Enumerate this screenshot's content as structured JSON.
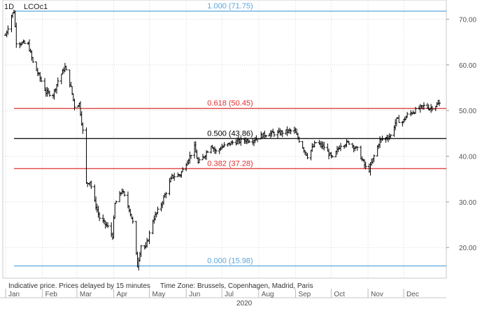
{
  "header": {
    "interval": "1D",
    "symbol": "LCOc1"
  },
  "footer": {
    "note": "Indicative price. Prices delayed by 15 minutes",
    "timezone": "Time Zone: Brussels, Copenhagen, Madrid, Paris"
  },
  "colors": {
    "fib_blue": "#5aa6dc",
    "fib_red": "#e03030",
    "fib_black": "#000000",
    "bars": "#000000",
    "grid": "#d8d8d8",
    "axis_text": "#555555"
  },
  "chart_data": {
    "type": "ohlc",
    "title": "LCOc1",
    "interval": "1D",
    "year_label": "2020",
    "x_ticks": [
      "Jan",
      "Feb",
      "Mar",
      "Apr",
      "May",
      "Jun",
      "Jul",
      "Aug",
      "Sep",
      "Oct",
      "Nov",
      "Dec"
    ],
    "y_ticks": [
      20,
      30,
      40,
      50,
      60,
      70
    ],
    "y_tick_labels": [
      "20.00",
      "30.00",
      "40.00",
      "50.00",
      "60.00",
      "70.00"
    ],
    "ylim": [
      13.3,
      74.2
    ],
    "grid": true,
    "fibonacci": [
      {
        "level": "1.000",
        "price": 71.75,
        "label": "1.000 (71.75)",
        "color": "#5aa6dc"
      },
      {
        "level": "0.618",
        "price": 50.45,
        "label": "0.618 (50.45)",
        "color": "#e03030"
      },
      {
        "level": "0.500",
        "price": 43.86,
        "label": "0.500 (43.86)",
        "color": "#000000"
      },
      {
        "level": "0.382",
        "price": 37.28,
        "label": "0.382 (37.28)",
        "color": "#e03030"
      },
      {
        "level": "0.000",
        "price": 15.98,
        "label": "0.000 (15.98)",
        "color": "#5aa6dc"
      }
    ],
    "price_path": [
      [
        "2020-01-01",
        66.5
      ],
      [
        "2020-01-06",
        70.8
      ],
      [
        "2020-01-08",
        71.7
      ],
      [
        "2020-01-10",
        65.0
      ],
      [
        "2020-01-20",
        64.5
      ],
      [
        "2020-01-24",
        60.5
      ],
      [
        "2020-01-31",
        56.5
      ],
      [
        "2020-02-04",
        54.0
      ],
      [
        "2020-02-10",
        53.5
      ],
      [
        "2020-02-14",
        56.5
      ],
      [
        "2020-02-19",
        59.0
      ],
      [
        "2020-02-20",
        59.5
      ],
      [
        "2020-02-25",
        55.0
      ],
      [
        "2020-02-28",
        51.0
      ],
      [
        "2020-03-03",
        51.5
      ],
      [
        "2020-03-06",
        45.5
      ],
      [
        "2020-03-09",
        34.0
      ],
      [
        "2020-03-12",
        34.5
      ],
      [
        "2020-03-16",
        30.0
      ],
      [
        "2020-03-20",
        26.5
      ],
      [
        "2020-03-27",
        24.5
      ],
      [
        "2020-03-31",
        22.5
      ],
      [
        "2020-04-02",
        29.5
      ],
      [
        "2020-04-08",
        32.5
      ],
      [
        "2020-04-14",
        28.5
      ],
      [
        "2020-04-17",
        25.5
      ],
      [
        "2020-04-21",
        16.0
      ],
      [
        "2020-04-24",
        20.5
      ],
      [
        "2020-04-28",
        20.0
      ],
      [
        "2020-05-04",
        26.0
      ],
      [
        "2020-05-11",
        29.5
      ],
      [
        "2020-05-20",
        35.5
      ],
      [
        "2020-05-27",
        36.0
      ],
      [
        "2020-06-03",
        39.5
      ],
      [
        "2020-06-08",
        42.0
      ],
      [
        "2020-06-11",
        38.5
      ],
      [
        "2020-06-16",
        40.0
      ],
      [
        "2020-06-22",
        42.5
      ],
      [
        "2020-06-26",
        41.0
      ],
      [
        "2020-07-01",
        42.0
      ],
      [
        "2020-07-10",
        43.0
      ],
      [
        "2020-07-20",
        43.5
      ],
      [
        "2020-07-27",
        43.5
      ],
      [
        "2020-08-03",
        44.5
      ],
      [
        "2020-08-10",
        45.0
      ],
      [
        "2020-08-17",
        45.0
      ],
      [
        "2020-08-26",
        45.5
      ],
      [
        "2020-08-31",
        45.5
      ],
      [
        "2020-09-07",
        42.0
      ],
      [
        "2020-09-11",
        40.0
      ],
      [
        "2020-09-18",
        43.0
      ],
      [
        "2020-09-25",
        42.0
      ],
      [
        "2020-10-02",
        39.5
      ],
      [
        "2020-10-09",
        42.5
      ],
      [
        "2020-10-16",
        43.0
      ],
      [
        "2020-10-23",
        41.5
      ],
      [
        "2020-10-30",
        37.5
      ],
      [
        "2020-11-02",
        37.0
      ],
      [
        "2020-11-06",
        40.0
      ],
      [
        "2020-11-11",
        43.5
      ],
      [
        "2020-11-16",
        44.0
      ],
      [
        "2020-11-20",
        44.5
      ],
      [
        "2020-11-25",
        48.0
      ],
      [
        "2020-11-30",
        47.5
      ],
      [
        "2020-12-04",
        49.0
      ],
      [
        "2020-12-11",
        50.0
      ],
      [
        "2020-12-18",
        51.0
      ],
      [
        "2020-12-23",
        50.5
      ],
      [
        "2020-12-31",
        51.5
      ]
    ]
  }
}
